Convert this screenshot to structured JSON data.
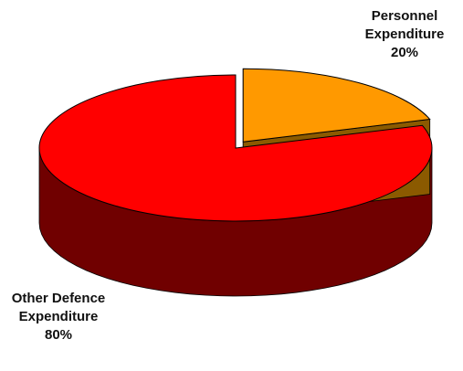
{
  "chart_data": {
    "type": "pie",
    "style": "3d-exploded",
    "title": "",
    "slices": [
      {
        "label_lines": [
          "Personnel",
          "Expenditure",
          "20%"
        ],
        "value": 20,
        "color": "#FF9900",
        "side_color": "#8B5A00",
        "exploded": true
      },
      {
        "label_lines": [
          "Other Defence",
          "Expenditure",
          "80%"
        ],
        "value": 80,
        "color": "#FF0000",
        "side_color": "#700000",
        "exploded": false
      }
    ],
    "legend": "none"
  }
}
